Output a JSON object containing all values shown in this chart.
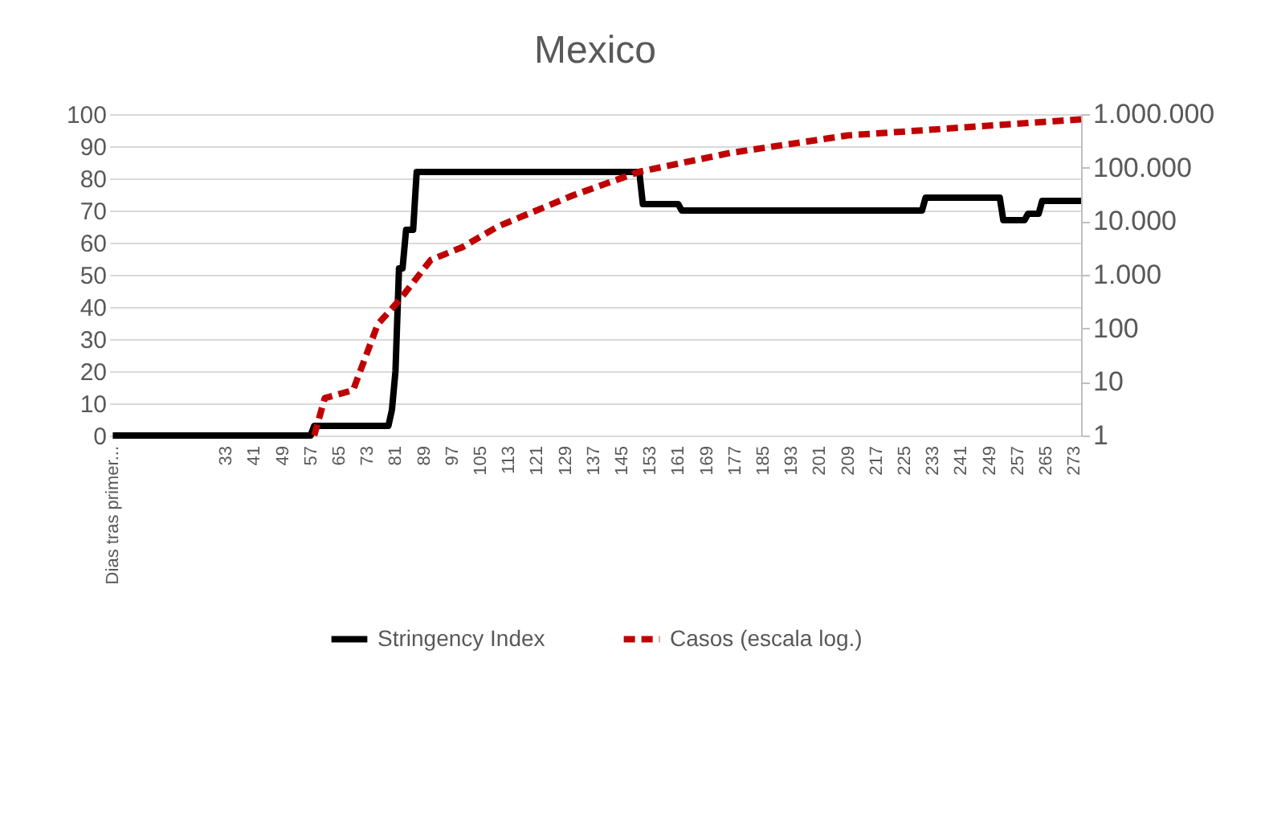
{
  "chart_data": {
    "type": "line",
    "title": "Mexico",
    "grid": "y",
    "legend": "bottom",
    "xlim": [
      0,
      275
    ],
    "xticks": [
      {
        "value": 1,
        "label": "Dias tras primer..."
      },
      33,
      41,
      49,
      57,
      65,
      73,
      81,
      89,
      97,
      105,
      113,
      121,
      129,
      137,
      145,
      153,
      161,
      169,
      177,
      185,
      193,
      201,
      209,
      217,
      225,
      233,
      241,
      249,
      257,
      265,
      273
    ],
    "ylim": [
      0,
      100
    ],
    "yticks": [
      0,
      10,
      20,
      30,
      40,
      50,
      60,
      70,
      80,
      90,
      100
    ],
    "y2lim": [
      1,
      1000000
    ],
    "y2ticks": [
      1,
      10,
      {
        "value": 100,
        "label": "100"
      },
      {
        "value": 1000,
        "label": "1.000"
      },
      {
        "value": 10000,
        "label": "10.000"
      },
      {
        "value": 100000,
        "label": "100.000"
      },
      {
        "value": 1000000,
        "label": "1.000.000"
      }
    ],
    "log": "y2",
    "series": [
      {
        "name": "Stringency Index",
        "color": "#000000",
        "line_style": "solid",
        "x": [
          1,
          57,
          58,
          79,
          80,
          81,
          82,
          83,
          84,
          86,
          87,
          89,
          150,
          151,
          161,
          162,
          230,
          231,
          252,
          253,
          259,
          260,
          263,
          264,
          275
        ],
        "values": [
          0,
          0,
          3,
          3,
          8,
          20,
          52,
          52,
          64,
          64,
          82,
          82,
          82,
          72,
          72,
          70,
          70,
          74,
          74,
          67,
          67,
          69,
          69,
          73,
          73
        ]
      },
      {
        "name": "Casos (escala log.)",
        "color": "#c00000",
        "line_style": "dashed",
        "axis": "y2",
        "x": [
          58,
          61,
          69,
          76,
          82,
          91,
          100,
          110,
          131,
          150,
          176,
          209,
          236,
          275
        ],
        "values": [
          1,
          5,
          7,
          120,
          330,
          1900,
          3300,
          8000,
          30000,
          84000,
          190000,
          400000,
          530000,
          800000
        ]
      }
    ]
  }
}
